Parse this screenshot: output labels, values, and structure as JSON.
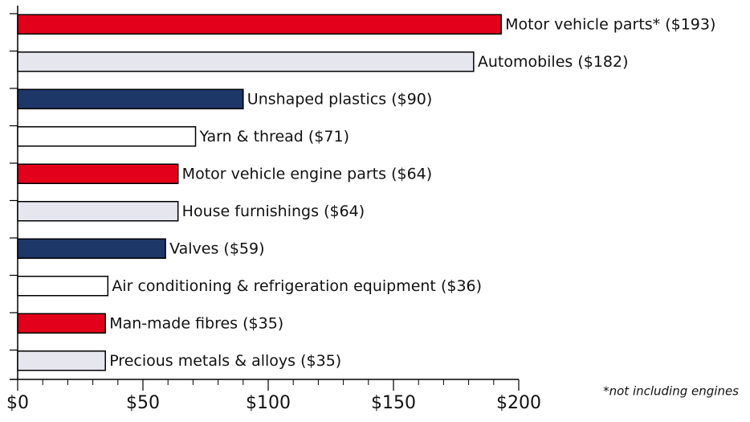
{
  "chart_data": {
    "type": "barh",
    "categories": [
      "Motor vehicle parts*",
      "Automobiles",
      "Unshaped plastics",
      "Yarn & thread",
      "Motor vehicle engine parts",
      "House furnishings",
      "Valves",
      "Air conditioning & refrigeration equipment",
      "Man-made fibres",
      "Precious metals & alloys"
    ],
    "values": [
      193,
      182,
      90,
      71,
      64,
      64,
      59,
      36,
      35,
      35
    ],
    "value_labels": [
      "($193)",
      "($182)",
      "($90)",
      "($71)",
      "($64)",
      "($64)",
      "($59)",
      "($36)",
      "($35)",
      "($35)"
    ],
    "colors": [
      "#e2001a",
      "#e6e6ef",
      "#1c3768",
      "#ffffff",
      "#e2001a",
      "#e6e6ef",
      "#1c3768",
      "#ffffff",
      "#e2001a",
      "#e6e6ef"
    ],
    "xlim": [
      0,
      200
    ],
    "xticks": [
      {
        "value": 0,
        "label": "$0"
      },
      {
        "value": 50,
        "label": "$50"
      },
      {
        "value": 100,
        "label": "$100"
      },
      {
        "value": 150,
        "label": "$150"
      },
      {
        "value": 200,
        "label": "$200"
      }
    ],
    "xminorticks": [
      10,
      20,
      30,
      40,
      60,
      70,
      80,
      90,
      110,
      120,
      130,
      140,
      160,
      170,
      180,
      190
    ],
    "annotation": "*not including engines"
  }
}
